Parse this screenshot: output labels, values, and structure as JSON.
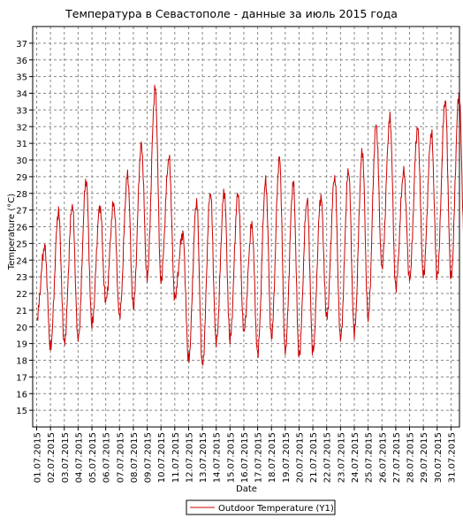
{
  "chart_data": {
    "type": "line",
    "title": "Температура в Севастополе - данные за июль 2015 года",
    "xlabel": "Date",
    "ylabel": "Temperature (°C)",
    "ylim": [
      14,
      38
    ],
    "y_ticks": [
      15,
      16,
      17,
      18,
      19,
      20,
      21,
      22,
      23,
      24,
      25,
      26,
      27,
      28,
      29,
      30,
      31,
      32,
      33,
      34,
      35,
      36,
      37
    ],
    "x_ticks": [
      "01.07.2015",
      "02.07.2015",
      "03.07.2015",
      "04.07.2015",
      "05.07.2015",
      "06.07.2015",
      "07.07.2015",
      "08.07.2015",
      "09.07.2015",
      "10.07.2015",
      "11.07.2015",
      "12.07.2015",
      "13.07.2015",
      "14.07.2015",
      "15.07.2015",
      "16.07.2015",
      "17.07.2015",
      "18.07.2015",
      "19.07.2015",
      "20.07.2015",
      "21.07.2015",
      "22.07.2015",
      "23.07.2015",
      "24.07.2015",
      "25.07.2015",
      "26.07.2015",
      "27.07.2015",
      "28.07.2015",
      "29.07.2015",
      "30.07.2015",
      "31.07.2015"
    ],
    "grid": true,
    "legend_position": "bottom",
    "series": [
      {
        "name": "Outdoor Temperature (Y1)",
        "color": "#cc0000",
        "daily_min": [
          20.5,
          18.8,
          19.0,
          19.2,
          20.1,
          21.5,
          20.6,
          21.2,
          23.0,
          22.8,
          21.8,
          18.0,
          17.6,
          19.0,
          19.2,
          19.7,
          18.4,
          19.4,
          18.6,
          18.3,
          18.5,
          20.5,
          19.2,
          19.6,
          20.5,
          23.6,
          22.4,
          22.9,
          23.1,
          23.0,
          22.9
        ],
        "daily_max": [
          24.8,
          26.9,
          27.3,
          28.8,
          27.2,
          27.4,
          29.1,
          30.9,
          34.3,
          30.1,
          25.6,
          27.5,
          28.1,
          28.1,
          28.0,
          26.1,
          28.7,
          30.1,
          28.6,
          27.6,
          27.8,
          29.0,
          29.4,
          30.5,
          32.1,
          32.5,
          29.3,
          31.9,
          31.6,
          33.6,
          33.9
        ],
        "end_value": 24.3
      }
    ]
  }
}
